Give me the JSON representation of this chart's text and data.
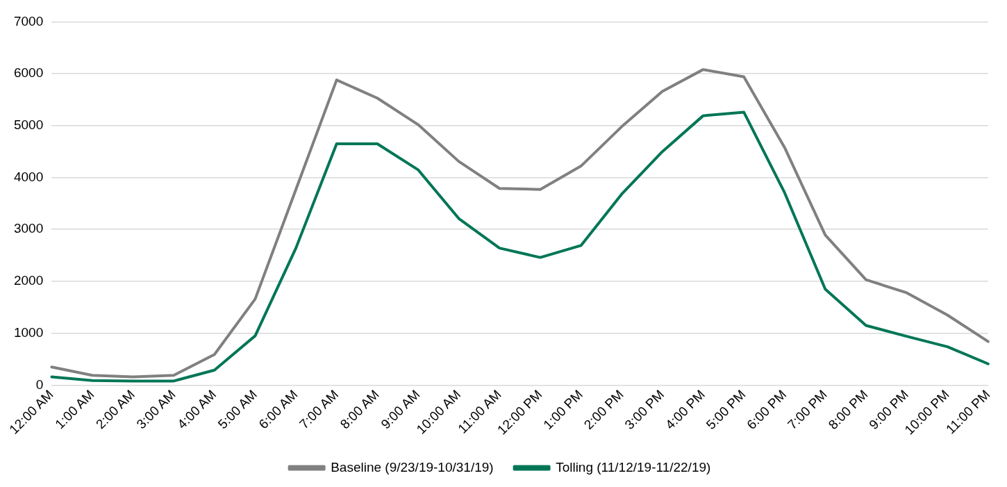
{
  "chart_data": {
    "type": "line",
    "categories": [
      "12:00 AM",
      "1:00 AM",
      "2:00 AM",
      "3:00 AM",
      "4:00 AM",
      "5:00 AM",
      "6:00 AM",
      "7:00 AM",
      "8:00 AM",
      "9:00 AM",
      "10:00 AM",
      "11:00 AM",
      "12:00 PM",
      "1:00 PM",
      "2:00 PM",
      "3:00 PM",
      "4:00 PM",
      "5:00 PM",
      "6:00 PM",
      "7:00 PM",
      "8:00 PM",
      "9:00 PM",
      "10:00 PM",
      "11:00 PM"
    ],
    "series": [
      {
        "name": "Baseline (9/23/19-10/31/19)",
        "color": "#808080",
        "values": [
          350,
          190,
          160,
          190,
          590,
          1660,
          3770,
          5880,
          5530,
          5020,
          4310,
          3790,
          3770,
          4220,
          4980,
          5660,
          6080,
          5940,
          4580,
          2890,
          2030,
          1780,
          1350,
          840
        ]
      },
      {
        "name": "Tolling (11/12/19-11/22/19)",
        "color": "#007656",
        "values": [
          160,
          90,
          80,
          80,
          290,
          950,
          2640,
          4650,
          4650,
          4150,
          3210,
          2640,
          2460,
          2690,
          3680,
          4500,
          5190,
          5260,
          3710,
          1850,
          1150,
          940,
          740,
          410
        ]
      }
    ],
    "ylim": [
      0,
      7000
    ],
    "yticks": [
      0,
      1000,
      2000,
      3000,
      4000,
      5000,
      6000,
      7000
    ],
    "grid": "y",
    "legend": "bottom",
    "marker": "none",
    "line_style": "solid"
  }
}
